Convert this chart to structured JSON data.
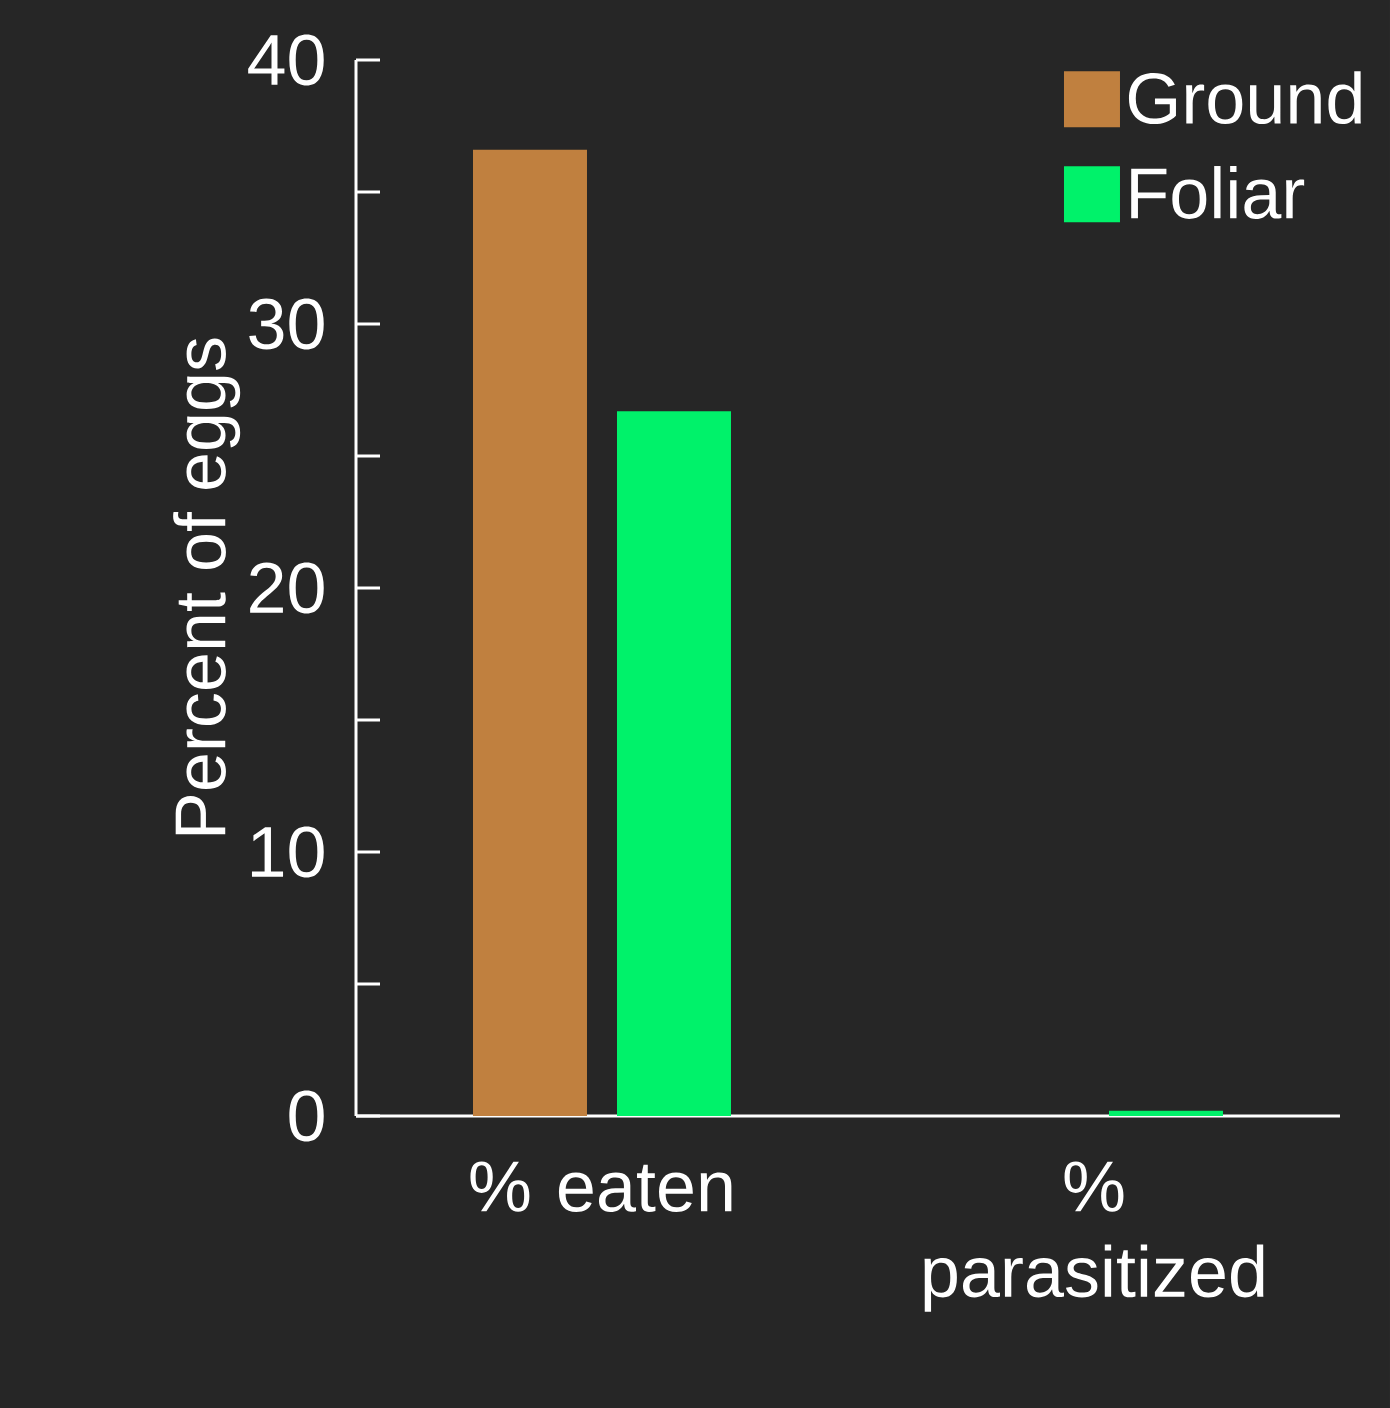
{
  "chart_data": {
    "type": "bar",
    "ylabel": "Percent of eggs",
    "categories": [
      "% eaten",
      "% parasitized"
    ],
    "series": [
      {
        "name": "Ground",
        "color": "#c0803f",
        "values": [
          36.6,
          0
        ]
      },
      {
        "name": "Foliar",
        "color": "#00f26a",
        "values": [
          26.7,
          0.2
        ]
      }
    ],
    "ylim": [
      0,
      40
    ],
    "yticks": [
      0,
      {
        "value": 5,
        "label": null
      },
      10,
      {
        "value": 15,
        "label": null
      },
      20,
      {
        "value": 25,
        "label": null
      },
      30,
      {
        "value": 35,
        "label": null
      },
      40
    ],
    "legend": "top right",
    "grid": false
  }
}
